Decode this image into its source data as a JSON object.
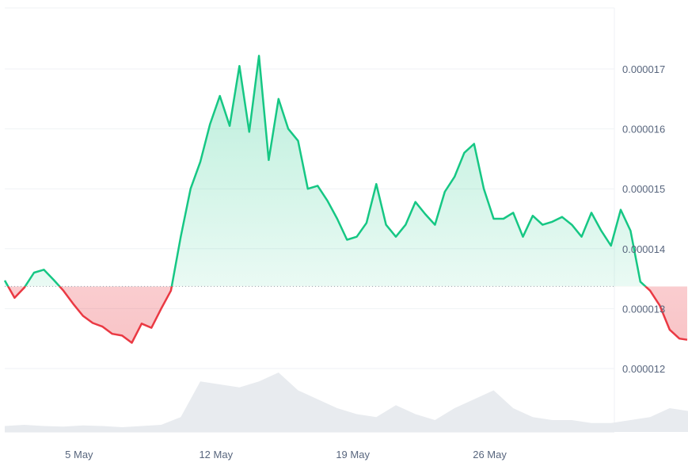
{
  "chart_data": {
    "type": "line",
    "title": "",
    "xlabel": "",
    "ylabel": "",
    "x_ticks": [
      "5 May",
      "12 May",
      "19 May",
      "26 May"
    ],
    "y_ticks": [
      "0.000012",
      "0.000013",
      "0.000014",
      "0.000015",
      "0.000016",
      "0.000017"
    ],
    "ylim": [
      1.15e-05,
      1.8e-05
    ],
    "baseline": 1.337e-05,
    "grid": true,
    "colors": {
      "above": "#16c784",
      "below": "#ea3943",
      "volume": "#e8ebef",
      "grid": "#eff2f5"
    },
    "series": [
      {
        "x": [
          1.0,
          1.5,
          2.0,
          2.5,
          3.0,
          3.5,
          4.0,
          4.5,
          5.0,
          5.5,
          6.0,
          6.5,
          7.0,
          7.5,
          8.0,
          8.5,
          9.0,
          9.5,
          10.0,
          10.5,
          11.0,
          11.5,
          12.0,
          12.5,
          13.0,
          13.5,
          14.0,
          14.5,
          15.0,
          15.5,
          16.0,
          16.5,
          17.0,
          17.5,
          18.0,
          18.5,
          19.0,
          19.5,
          20.0,
          20.5,
          21.0,
          21.5,
          22.0,
          22.5,
          23.0,
          23.5,
          24.0,
          24.5,
          25.0,
          25.5,
          26.0,
          26.5,
          27.0,
          27.5,
          28.0,
          28.5,
          29.0,
          29.5,
          30.0,
          30.5,
          31.0,
          31.5,
          32.0,
          32.5,
          33.0,
          33.5,
          34.0,
          34.5,
          35.0,
          35.5,
          35.9
        ],
        "values": [
          1.347e-05,
          1.318e-05,
          1.335e-05,
          1.36e-05,
          1.365e-05,
          1.348e-05,
          1.33e-05,
          1.308e-05,
          1.288e-05,
          1.276e-05,
          1.27e-05,
          1.258e-05,
          1.255e-05,
          1.243e-05,
          1.275e-05,
          1.268e-05,
          1.3e-05,
          1.33e-05,
          1.42e-05,
          1.5e-05,
          1.545e-05,
          1.608e-05,
          1.655e-05,
          1.605e-05,
          1.705e-05,
          1.595e-05,
          1.722e-05,
          1.548e-05,
          1.65e-05,
          1.6e-05,
          1.58e-05,
          1.5e-05,
          1.505e-05,
          1.48e-05,
          1.45e-05,
          1.415e-05,
          1.42e-05,
          1.443e-05,
          1.508e-05,
          1.44e-05,
          1.42e-05,
          1.44e-05,
          1.478e-05,
          1.458e-05,
          1.44e-05,
          1.495e-05,
          1.52e-05,
          1.56e-05,
          1.575e-05,
          1.5e-05,
          1.45e-05,
          1.45e-05,
          1.46e-05,
          1.42e-05,
          1.455e-05,
          1.44e-05,
          1.445e-05,
          1.453e-05,
          1.44e-05,
          1.42e-05,
          1.46e-05,
          1.43e-05,
          1.405e-05,
          1.465e-05,
          1.43e-05,
          1.345e-05,
          1.33e-05,
          1.305e-05,
          1.265e-05,
          1.25e-05,
          1.248e-05
        ]
      },
      {
        "name": "volume",
        "x": [
          1,
          2,
          3,
          4,
          5,
          6,
          7,
          8,
          9,
          10,
          11,
          12,
          13,
          14,
          15,
          16,
          17,
          18,
          19,
          20,
          21,
          22,
          23,
          24,
          25,
          26,
          27,
          28,
          29,
          30,
          31,
          32,
          33,
          34,
          35,
          36
        ],
        "values": [
          0.1,
          0.12,
          0.1,
          0.09,
          0.11,
          0.1,
          0.08,
          0.1,
          0.12,
          0.25,
          0.85,
          0.8,
          0.75,
          0.85,
          1.0,
          0.7,
          0.55,
          0.4,
          0.3,
          0.25,
          0.45,
          0.3,
          0.2,
          0.4,
          0.55,
          0.7,
          0.4,
          0.25,
          0.2,
          0.2,
          0.15,
          0.15,
          0.2,
          0.25,
          0.4,
          0.35
        ]
      }
    ]
  }
}
